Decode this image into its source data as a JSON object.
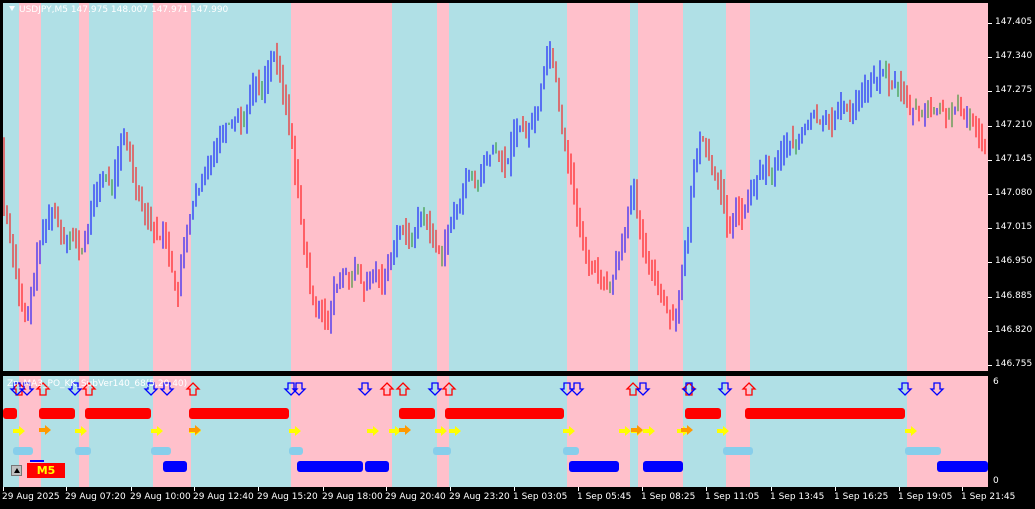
{
  "symbol_title": "USDJPY,M5  147.975 148.007 147.971 147.990",
  "indicator_name": "Zn_MA3_PO_KK_SubVer140_68(5,20,40)",
  "timeframe_badge": "M5",
  "price_axis": [
    "147.405",
    "147.340",
    "147.275",
    "147.210",
    "147.145",
    "147.080",
    "147.015",
    "146.950",
    "146.885",
    "146.820",
    "146.755"
  ],
  "sub_axis": [
    "6",
    "0"
  ],
  "time_axis": [
    "29 Aug 2025",
    "29 Aug 07:20",
    "29 Aug 10:00",
    "29 Aug 12:40",
    "29 Aug 15:20",
    "29 Aug 18:00",
    "29 Aug 20:40",
    "29 Aug 23:20",
    "1 Sep 03:05",
    "1 Sep 05:45",
    "1 Sep 08:25",
    "1 Sep 11:05",
    "1 Sep 13:45",
    "1 Sep 16:25",
    "1 Sep 19:05",
    "1 Sep 21:45"
  ],
  "colors": {
    "background": "#000000",
    "up_trend_band": "#ffc0cb",
    "down_trend_band": "#b0e0e6",
    "bull_bar": "#0000ff",
    "bear_bar": "#ff0000",
    "neutral_bar": "#228b22",
    "signal_red": "#ff0000",
    "signal_blue": "#0000ff",
    "signal_yellow": "#ffff00",
    "signal_orange": "#ff9900",
    "signal_skyblue": "#87ceeb"
  },
  "chart_data": {
    "type": "candlestick",
    "symbol": "USDJPY",
    "timeframe": "M5",
    "last_bar": {
      "open": 147.975,
      "high": 148.007,
      "low": 147.971,
      "close": 147.99
    },
    "ylim": [
      146.73,
      147.43
    ],
    "y_ticks": [
      147.405,
      147.34,
      147.275,
      147.21,
      147.145,
      147.08,
      147.015,
      146.95,
      146.885,
      146.82,
      146.755
    ],
    "price_path": [
      [
        0,
        147.05
      ],
      [
        6,
        147.0
      ],
      [
        12,
        146.93
      ],
      [
        18,
        146.85
      ],
      [
        24,
        146.82
      ],
      [
        30,
        146.9
      ],
      [
        36,
        146.97
      ],
      [
        42,
        147.0
      ],
      [
        48,
        147.04
      ],
      [
        54,
        147.02
      ],
      [
        60,
        146.98
      ],
      [
        66,
        146.99
      ],
      [
        72,
        146.98
      ],
      [
        78,
        146.95
      ],
      [
        84,
        147.0
      ],
      [
        90,
        147.05
      ],
      [
        96,
        147.09
      ],
      [
        102,
        147.1
      ],
      [
        108,
        147.08
      ],
      [
        114,
        147.12
      ],
      [
        120,
        147.18
      ],
      [
        126,
        147.15
      ],
      [
        132,
        147.09
      ],
      [
        138,
        147.05
      ],
      [
        144,
        147.03
      ],
      [
        150,
        147.0
      ],
      [
        156,
        146.98
      ],
      [
        162,
        147.0
      ],
      [
        168,
        146.93
      ],
      [
        174,
        146.86
      ],
      [
        180,
        146.96
      ],
      [
        186,
        147.02
      ],
      [
        192,
        147.06
      ],
      [
        198,
        147.08
      ],
      [
        204,
        147.12
      ],
      [
        210,
        147.15
      ],
      [
        216,
        147.17
      ],
      [
        222,
        147.2
      ],
      [
        228,
        147.2
      ],
      [
        234,
        147.22
      ],
      [
        240,
        147.2
      ],
      [
        246,
        147.25
      ],
      [
        252,
        147.28
      ],
      [
        258,
        147.26
      ],
      [
        264,
        147.3
      ],
      [
        270,
        147.33
      ],
      [
        276,
        147.3
      ],
      [
        282,
        147.24
      ],
      [
        288,
        147.18
      ],
      [
        294,
        147.08
      ],
      [
        300,
        146.98
      ],
      [
        306,
        146.9
      ],
      [
        312,
        146.85
      ],
      [
        318,
        146.86
      ],
      [
        324,
        146.8
      ],
      [
        330,
        146.88
      ],
      [
        336,
        146.9
      ],
      [
        342,
        146.92
      ],
      [
        348,
        146.9
      ],
      [
        354,
        146.93
      ],
      [
        360,
        146.88
      ],
      [
        366,
        146.9
      ],
      [
        372,
        146.92
      ],
      [
        378,
        146.9
      ],
      [
        384,
        146.92
      ],
      [
        390,
        146.97
      ],
      [
        396,
        147.0
      ],
      [
        402,
        146.99
      ],
      [
        408,
        146.98
      ],
      [
        414,
        147.01
      ],
      [
        420,
        147.03
      ],
      [
        426,
        147.0
      ],
      [
        432,
        146.97
      ],
      [
        438,
        146.95
      ],
      [
        444,
        146.99
      ],
      [
        450,
        147.02
      ],
      [
        456,
        147.05
      ],
      [
        462,
        147.09
      ],
      [
        468,
        147.1
      ],
      [
        474,
        147.08
      ],
      [
        480,
        147.12
      ],
      [
        486,
        147.14
      ],
      [
        492,
        147.15
      ],
      [
        498,
        147.13
      ],
      [
        504,
        147.12
      ],
      [
        510,
        147.18
      ],
      [
        516,
        147.2
      ],
      [
        522,
        147.18
      ],
      [
        528,
        147.2
      ],
      [
        534,
        147.22
      ],
      [
        540,
        147.3
      ],
      [
        546,
        147.35
      ],
      [
        552,
        147.3
      ],
      [
        558,
        147.2
      ],
      [
        564,
        147.14
      ],
      [
        570,
        147.08
      ],
      [
        576,
        147.0
      ],
      [
        582,
        146.95
      ],
      [
        588,
        146.93
      ],
      [
        594,
        146.92
      ],
      [
        600,
        146.9
      ],
      [
        606,
        146.88
      ],
      [
        612,
        146.93
      ],
      [
        618,
        146.97
      ],
      [
        624,
        147.02
      ],
      [
        630,
        147.08
      ],
      [
        636,
        147.0
      ],
      [
        642,
        146.95
      ],
      [
        648,
        146.93
      ],
      [
        654,
        146.9
      ],
      [
        660,
        146.86
      ],
      [
        666,
        146.84
      ],
      [
        672,
        146.83
      ],
      [
        678,
        146.9
      ],
      [
        684,
        146.98
      ],
      [
        690,
        147.1
      ],
      [
        696,
        147.18
      ],
      [
        702,
        147.16
      ],
      [
        708,
        147.12
      ],
      [
        714,
        147.1
      ],
      [
        720,
        147.05
      ],
      [
        726,
        146.98
      ],
      [
        732,
        147.05
      ],
      [
        738,
        147.02
      ],
      [
        744,
        147.05
      ],
      [
        750,
        147.08
      ],
      [
        756,
        147.1
      ],
      [
        762,
        147.12
      ],
      [
        768,
        147.1
      ],
      [
        774,
        147.13
      ],
      [
        780,
        147.15
      ],
      [
        786,
        147.17
      ],
      [
        792,
        147.15
      ],
      [
        798,
        147.18
      ],
      [
        804,
        147.2
      ],
      [
        810,
        147.22
      ],
      [
        816,
        147.2
      ],
      [
        822,
        147.22
      ],
      [
        828,
        147.2
      ],
      [
        834,
        147.22
      ],
      [
        840,
        147.24
      ],
      [
        846,
        147.22
      ],
      [
        852,
        147.24
      ],
      [
        858,
        147.26
      ],
      [
        864,
        147.27
      ],
      [
        870,
        147.28
      ],
      [
        876,
        147.29
      ],
      [
        882,
        147.3
      ],
      [
        888,
        147.27
      ],
      [
        894,
        147.28
      ],
      [
        900,
        147.26
      ],
      [
        906,
        147.22
      ],
      [
        912,
        147.23
      ],
      [
        918,
        147.22
      ],
      [
        924,
        147.23
      ],
      [
        930,
        147.22
      ],
      [
        936,
        147.23
      ],
      [
        942,
        147.22
      ],
      [
        948,
        147.22
      ],
      [
        954,
        147.23
      ],
      [
        960,
        147.21
      ],
      [
        966,
        147.22
      ],
      [
        972,
        147.19
      ],
      [
        978,
        147.17
      ],
      [
        985,
        147.16
      ]
    ],
    "trend_bands": [
      {
        "from": 0,
        "to": 16,
        "trend": "down"
      },
      {
        "from": 16,
        "to": 38,
        "trend": "up"
      },
      {
        "from": 38,
        "to": 76,
        "trend": "down"
      },
      {
        "from": 76,
        "to": 86,
        "trend": "up"
      },
      {
        "from": 86,
        "to": 150,
        "trend": "down"
      },
      {
        "from": 150,
        "to": 188,
        "trend": "up"
      },
      {
        "from": 188,
        "to": 288,
        "trend": "down"
      },
      {
        "from": 288,
        "to": 389,
        "trend": "up"
      },
      {
        "from": 389,
        "to": 434,
        "trend": "down"
      },
      {
        "from": 434,
        "to": 446,
        "trend": "up"
      },
      {
        "from": 446,
        "to": 564,
        "trend": "down"
      },
      {
        "from": 564,
        "to": 627,
        "trend": "up"
      },
      {
        "from": 627,
        "to": 635,
        "trend": "down"
      },
      {
        "from": 635,
        "to": 680,
        "trend": "up"
      },
      {
        "from": 680,
        "to": 723,
        "trend": "down"
      },
      {
        "from": 723,
        "to": 747,
        "trend": "up"
      },
      {
        "from": 747,
        "to": 904,
        "trend": "down"
      },
      {
        "from": 904,
        "to": 985,
        "trend": "up"
      }
    ],
    "sub_indicator": {
      "name": "Zn_MA3_PO_KK_SubVer140_68(5,20,40)",
      "ylim": [
        0,
        6
      ],
      "red_bars": [
        [
          0,
          14
        ],
        [
          36,
          72
        ],
        [
          82,
          148
        ],
        [
          186,
          286
        ],
        [
          396,
          432
        ],
        [
          442,
          561
        ],
        [
          682,
          718
        ],
        [
          742,
          902
        ]
      ],
      "blue_bars": [
        [
          160,
          184
        ],
        [
          294,
          360
        ],
        [
          362,
          386
        ],
        [
          566,
          616
        ],
        [
          640,
          680
        ],
        [
          934,
          985
        ]
      ],
      "skyblue_bars": [
        [
          10,
          30
        ],
        [
          72,
          88
        ],
        [
          148,
          168
        ],
        [
          286,
          300
        ],
        [
          430,
          448
        ],
        [
          560,
          576
        ],
        [
          720,
          750
        ],
        [
          902,
          938
        ]
      ],
      "orange_marks": [
        36,
        186,
        396,
        628,
        678
      ],
      "yellow_arrows": [
        10,
        72,
        148,
        186,
        286,
        364,
        386,
        432,
        446,
        560,
        616,
        628,
        640,
        674,
        714,
        902
      ],
      "arrows_up_red": [
        16,
        40,
        86,
        190,
        384,
        400,
        446,
        630,
        686,
        746
      ],
      "arrows_down_blue": [
        14,
        24,
        72,
        148,
        164,
        288,
        296,
        362,
        432,
        564,
        574,
        640,
        686,
        722,
        902,
        934
      ]
    }
  }
}
